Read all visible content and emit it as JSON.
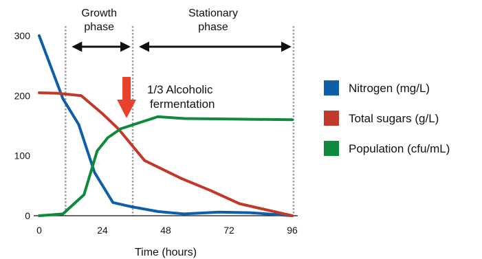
{
  "chart_data": {
    "type": "line",
    "title": "",
    "xlabel": "Time (hours)",
    "ylabel": "",
    "xlim": [
      0,
      96
    ],
    "ylim": [
      0,
      300
    ],
    "x_ticks": [
      "0",
      "24",
      "48",
      "72",
      "96"
    ],
    "x_tick_values": [
      0,
      24,
      48,
      72,
      96
    ],
    "y_ticks": [
      "0",
      "100",
      "200",
      "300"
    ],
    "y_tick_values": [
      0,
      100,
      200,
      300
    ],
    "grid": false,
    "legend_position": "right",
    "series": [
      {
        "name": "Nitrogen (mg/L)",
        "color": "#0f5ea8",
        "x": [
          0,
          9,
          15,
          21,
          28,
          35,
          45,
          55,
          68,
          80,
          96
        ],
        "y": [
          300,
          195,
          152,
          72,
          22,
          15,
          7,
          3,
          6,
          5,
          0
        ]
      },
      {
        "name": "Total sugars (g/L)",
        "color": "#c0392b",
        "x": [
          0,
          7,
          16,
          24,
          30,
          40,
          54,
          65,
          76,
          96
        ],
        "y": [
          205,
          204,
          200,
          170,
          145,
          92,
          62,
          42,
          20,
          0
        ]
      },
      {
        "name": "Population (cfu/mL)",
        "color": "#0f8a3c",
        "x": [
          0,
          9,
          17,
          22,
          26,
          31,
          45,
          55,
          75,
          96
        ],
        "y": [
          0,
          3,
          35,
          108,
          130,
          145,
          165,
          162,
          161,
          160
        ]
      }
    ],
    "phase_lines_x": [
      10,
      35.5,
      96.5
    ],
    "phases": [
      {
        "label": "Growth\nphase",
        "x_start": 10,
        "x_end": 35.5
      },
      {
        "label": "Stationary\nphase",
        "x_start": 35.5,
        "x_end": 96.5
      }
    ],
    "annotation": {
      "label": "1/3 Alcoholic\nfermentation",
      "arrow_x": 35.5,
      "color": "#e8412c"
    }
  }
}
